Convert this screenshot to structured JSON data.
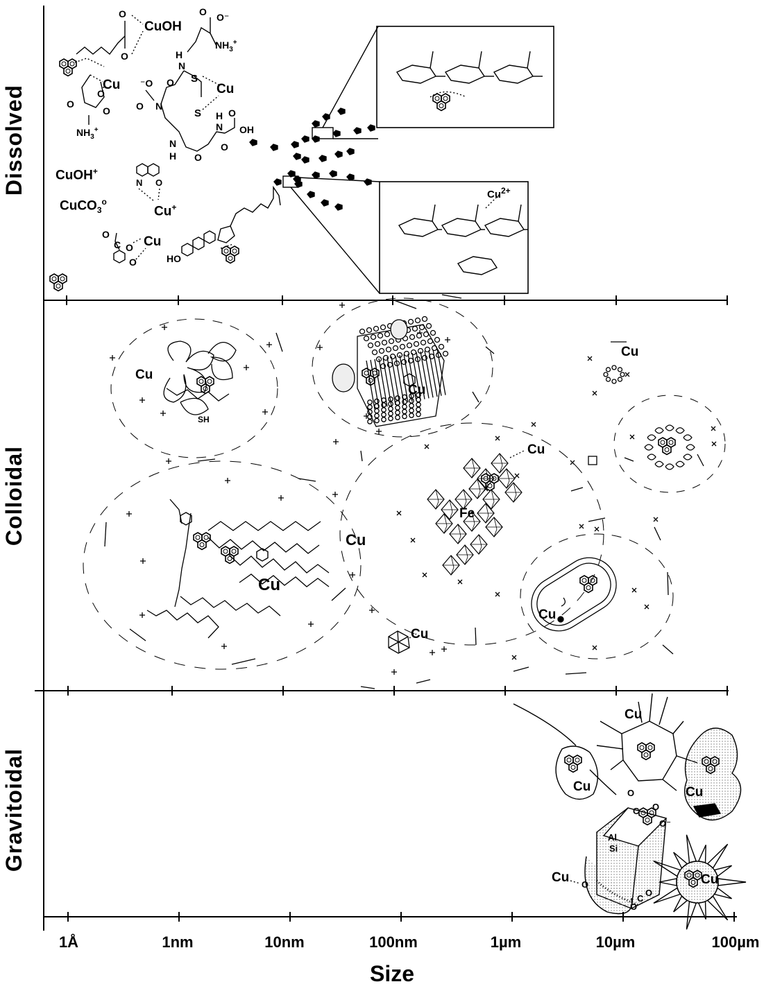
{
  "chart_data": {
    "type": "diagram",
    "xlabel": "Size",
    "x_scale": "log",
    "ticks": [
      "1Å",
      "1nm",
      "10nm",
      "100nm",
      "1µm",
      "10µm",
      "100µm"
    ],
    "bands": [
      "Dissolved",
      "Colloidal",
      "Gravitoidal"
    ]
  },
  "species": {
    "cuoh_top": "CuOH",
    "cu_1": "Cu",
    "cu_2": "Cu",
    "cuoh_ion": "CuOH",
    "cuoh_ion_charge": "+",
    "cuco3": "CuCO",
    "cuco3_sub": "3",
    "cuco3_sup": "o",
    "cu_plus": "Cu",
    "cu_plus_charge": "+",
    "cu_salicylate": "Cu",
    "cu2plus": "Cu",
    "cu2plus_charge": "2+",
    "nh3_a": "NH",
    "nh3_b": "NH",
    "cu_colloid_left": "Cu",
    "cu_clay": "Cu",
    "cu_top_right": "Cu",
    "cu_fe": "Cu",
    "fe": "Fe",
    "cu_humic_1": "Cu",
    "cu_humic_2": "Cu",
    "cu_virus": "Cu",
    "cu_bacterium": "Cu",
    "cu_grav_1": "Cu",
    "cu_grav_2": "Cu",
    "cu_grav_3": "Cu",
    "cu_grav_4": "Cu",
    "cu_grav_5": "Cu",
    "al": "Al",
    "si": "Si",
    "sh": "SH"
  },
  "colors": {
    "ink": "#000000",
    "paper": "#ffffff",
    "stipple": "#888888"
  }
}
